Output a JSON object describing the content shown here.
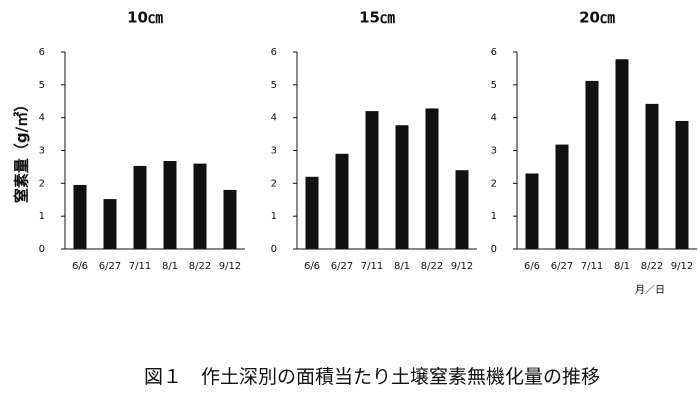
{
  "caption": "図１　作土深別の面積当たり土壌窒素無機化量の推移",
  "chart_data": [
    {
      "type": "bar",
      "title": "10㎝",
      "ylabel": "窒素量（g/㎡）",
      "categories": [
        "6/6",
        "6/27",
        "7/11",
        "8/1",
        "8/22",
        "9/12"
      ],
      "values": [
        1.95,
        1.52,
        2.53,
        2.68,
        2.6,
        1.8
      ],
      "color": "#111111",
      "ylim": [
        0,
        6
      ],
      "yticks": [
        0,
        1,
        2,
        3,
        4,
        5,
        6
      ],
      "grid": false
    },
    {
      "type": "bar",
      "title": "15㎝",
      "categories": [
        "6/6",
        "6/27",
        "7/11",
        "8/1",
        "8/22",
        "9/12"
      ],
      "values": [
        2.2,
        2.9,
        4.2,
        3.77,
        4.28,
        2.4
      ],
      "color": "#111111",
      "ylim": [
        0,
        6
      ],
      "yticks": [
        0,
        1,
        2,
        3,
        4,
        5,
        6
      ],
      "grid": false
    },
    {
      "type": "bar",
      "title": "20㎝",
      "xlabel": "月／日",
      "categories": [
        "6/6",
        "6/27",
        "7/11",
        "8/1",
        "8/22",
        "9/12"
      ],
      "values": [
        2.3,
        3.18,
        5.12,
        5.78,
        4.42,
        3.9
      ],
      "color": "#111111",
      "ylim": [
        0,
        6
      ],
      "yticks": [
        0,
        1,
        2,
        3,
        4,
        5,
        6
      ],
      "grid": false
    }
  ]
}
